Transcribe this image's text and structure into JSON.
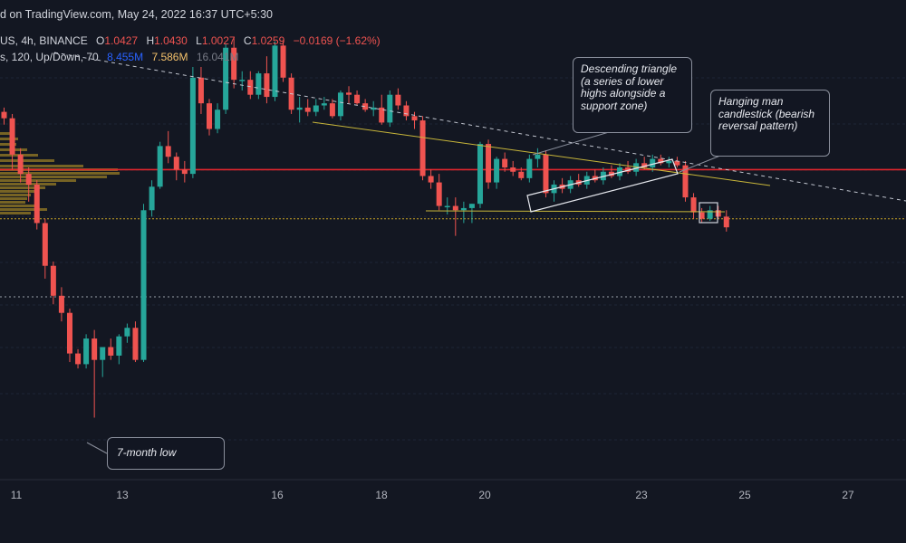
{
  "header": {
    "attribution": "d on TradingView.com, May 24, 2022 16:37 UTC+5:30",
    "symbol": "US, 4h, BINANCE",
    "ohlc": {
      "o_label": "O",
      "o": "1.0427",
      "h_label": "H",
      "h": "1.0430",
      "l_label": "L",
      "l": "1.0027",
      "c_label": "C",
      "c": "1.0259",
      "change": "−0.0169 (−1.62%)"
    },
    "indicator": {
      "label": "s, 120, Up/Down, 70",
      "v1": "8.455M",
      "v2": "7.586M",
      "v3": "16.041M"
    }
  },
  "annotations": {
    "descending_triangle": "Descending triangle (a series of lower highs alongside a support zone)",
    "hanging_man": "Hanging man candlestick (bearish reversal pattern)",
    "seven_month_low": "7-month low"
  },
  "colors": {
    "background": "#131722",
    "bull": "#26a69a",
    "bear": "#ef5350",
    "resistance": "#e0262c",
    "trendline": "#c8b63a",
    "dashed_line": "#c8ccd6",
    "volume_profile": "#c8a326",
    "text": "#d1d4dc",
    "change_negative": "#ef5350",
    "indicator_v1": "#2962ff",
    "indicator_v2": "#f5c26b",
    "indicator_v3": "#787b86"
  },
  "chart_data": {
    "type": "candlestick",
    "interval": "4h",
    "x_ticks": [
      "11",
      "13",
      "16",
      "18",
      "20",
      "23",
      "25",
      "27"
    ],
    "candles": [
      {
        "o": 1.102,
        "h": 1.104,
        "l": 1.096,
        "c": 1.099
      },
      {
        "o": 1.099,
        "h": 1.101,
        "l": 1.075,
        "c": 1.082
      },
      {
        "o": 1.082,
        "h": 1.085,
        "l": 1.069,
        "c": 1.073
      },
      {
        "o": 1.073,
        "h": 1.076,
        "l": 1.06,
        "c": 1.068
      },
      {
        "o": 1.068,
        "h": 1.07,
        "l": 1.047,
        "c": 1.05
      },
      {
        "o": 1.05,
        "h": 1.052,
        "l": 1.024,
        "c": 1.03
      },
      {
        "o": 1.03,
        "h": 1.032,
        "l": 1.012,
        "c": 1.016
      },
      {
        "o": 1.016,
        "h": 1.02,
        "l": 1.004,
        "c": 1.008
      },
      {
        "o": 1.008,
        "h": 1.01,
        "l": 0.985,
        "c": 0.989
      },
      {
        "o": 0.989,
        "h": 0.991,
        "l": 0.982,
        "c": 0.984
      },
      {
        "o": 0.984,
        "h": 0.998,
        "l": 0.982,
        "c": 0.996
      },
      {
        "o": 0.996,
        "h": 1.0,
        "l": 0.959,
        "c": 0.986
      },
      {
        "o": 0.986,
        "h": 0.992,
        "l": 0.978,
        "c": 0.992
      },
      {
        "o": 0.992,
        "h": 0.996,
        "l": 0.986,
        "c": 0.988
      },
      {
        "o": 0.988,
        "h": 0.998,
        "l": 0.984,
        "c": 0.997
      },
      {
        "o": 0.997,
        "h": 1.003,
        "l": 0.994,
        "c": 1.001
      },
      {
        "o": 1.001,
        "h": 1.004,
        "l": 0.985,
        "c": 0.986
      },
      {
        "o": 0.986,
        "h": 1.059,
        "l": 0.985,
        "c": 1.056
      },
      {
        "o": 1.056,
        "h": 1.07,
        "l": 1.053,
        "c": 1.067
      },
      {
        "o": 1.067,
        "h": 1.088,
        "l": 1.066,
        "c": 1.086
      },
      {
        "o": 1.086,
        "h": 1.093,
        "l": 1.078,
        "c": 1.081
      },
      {
        "o": 1.081,
        "h": 1.083,
        "l": 1.07,
        "c": 1.075
      },
      {
        "o": 1.075,
        "h": 1.079,
        "l": 1.069,
        "c": 1.073
      },
      {
        "o": 1.073,
        "h": 1.123,
        "l": 1.071,
        "c": 1.118
      },
      {
        "o": 1.118,
        "h": 1.123,
        "l": 1.101,
        "c": 1.106
      },
      {
        "o": 1.106,
        "h": 1.108,
        "l": 1.091,
        "c": 1.094
      },
      {
        "o": 1.094,
        "h": 1.106,
        "l": 1.092,
        "c": 1.103
      },
      {
        "o": 1.103,
        "h": 1.134,
        "l": 1.101,
        "c": 1.132
      },
      {
        "o": 1.132,
        "h": 1.137,
        "l": 1.113,
        "c": 1.117
      },
      {
        "o": 1.117,
        "h": 1.121,
        "l": 1.112,
        "c": 1.117
      },
      {
        "o": 1.117,
        "h": 1.121,
        "l": 1.108,
        "c": 1.11
      },
      {
        "o": 1.11,
        "h": 1.121,
        "l": 1.108,
        "c": 1.12
      },
      {
        "o": 1.12,
        "h": 1.128,
        "l": 1.106,
        "c": 1.109
      },
      {
        "o": 1.109,
        "h": 1.135,
        "l": 1.107,
        "c": 1.133
      },
      {
        "o": 1.133,
        "h": 1.135,
        "l": 1.116,
        "c": 1.118
      },
      {
        "o": 1.118,
        "h": 1.12,
        "l": 1.101,
        "c": 1.103
      },
      {
        "o": 1.103,
        "h": 1.109,
        "l": 1.097,
        "c": 1.104
      },
      {
        "o": 1.104,
        "h": 1.108,
        "l": 1.1,
        "c": 1.102
      },
      {
        "o": 1.102,
        "h": 1.108,
        "l": 1.1,
        "c": 1.105
      },
      {
        "o": 1.105,
        "h": 1.109,
        "l": 1.103,
        "c": 1.106
      },
      {
        "o": 1.106,
        "h": 1.108,
        "l": 1.099,
        "c": 1.1
      },
      {
        "o": 1.1,
        "h": 1.112,
        "l": 1.098,
        "c": 1.111
      },
      {
        "o": 1.111,
        "h": 1.114,
        "l": 1.106,
        "c": 1.11
      },
      {
        "o": 1.11,
        "h": 1.112,
        "l": 1.105,
        "c": 1.106
      },
      {
        "o": 1.106,
        "h": 1.108,
        "l": 1.102,
        "c": 1.103
      },
      {
        "o": 1.103,
        "h": 1.107,
        "l": 1.1,
        "c": 1.104
      },
      {
        "o": 1.104,
        "h": 1.11,
        "l": 1.096,
        "c": 1.097
      },
      {
        "o": 1.097,
        "h": 1.112,
        "l": 1.095,
        "c": 1.11
      },
      {
        "o": 1.11,
        "h": 1.113,
        "l": 1.103,
        "c": 1.105
      },
      {
        "o": 1.105,
        "h": 1.107,
        "l": 1.098,
        "c": 1.1
      },
      {
        "o": 1.1,
        "h": 1.102,
        "l": 1.094,
        "c": 1.098
      },
      {
        "o": 1.098,
        "h": 1.1,
        "l": 1.07,
        "c": 1.072
      },
      {
        "o": 1.072,
        "h": 1.075,
        "l": 1.066,
        "c": 1.069
      },
      {
        "o": 1.069,
        "h": 1.073,
        "l": 1.056,
        "c": 1.058
      },
      {
        "o": 1.058,
        "h": 1.062,
        "l": 1.054,
        "c": 1.058
      },
      {
        "o": 1.058,
        "h": 1.062,
        "l": 1.044,
        "c": 1.056
      },
      {
        "o": 1.056,
        "h": 1.06,
        "l": 1.05,
        "c": 1.057
      },
      {
        "o": 1.057,
        "h": 1.059,
        "l": 1.05,
        "c": 1.059
      },
      {
        "o": 1.059,
        "h": 1.088,
        "l": 1.057,
        "c": 1.087
      },
      {
        "o": 1.087,
        "h": 1.089,
        "l": 1.066,
        "c": 1.069
      },
      {
        "o": 1.069,
        "h": 1.081,
        "l": 1.066,
        "c": 1.08
      },
      {
        "o": 1.08,
        "h": 1.083,
        "l": 1.074,
        "c": 1.076
      },
      {
        "o": 1.076,
        "h": 1.079,
        "l": 1.072,
        "c": 1.074
      },
      {
        "o": 1.074,
        "h": 1.076,
        "l": 1.07,
        "c": 1.071
      },
      {
        "o": 1.071,
        "h": 1.082,
        "l": 1.069,
        "c": 1.08
      },
      {
        "o": 1.08,
        "h": 1.085,
        "l": 1.076,
        "c": 1.082
      },
      {
        "o": 1.082,
        "h": 1.084,
        "l": 1.062,
        "c": 1.064
      },
      {
        "o": 1.064,
        "h": 1.07,
        "l": 1.06,
        "c": 1.068
      },
      {
        "o": 1.068,
        "h": 1.071,
        "l": 1.064,
        "c": 1.066
      },
      {
        "o": 1.066,
        "h": 1.072,
        "l": 1.064,
        "c": 1.07
      },
      {
        "o": 1.07,
        "h": 1.073,
        "l": 1.067,
        "c": 1.068
      },
      {
        "o": 1.068,
        "h": 1.074,
        "l": 1.066,
        "c": 1.072
      },
      {
        "o": 1.072,
        "h": 1.075,
        "l": 1.069,
        "c": 1.07
      },
      {
        "o": 1.07,
        "h": 1.076,
        "l": 1.068,
        "c": 1.074
      },
      {
        "o": 1.074,
        "h": 1.077,
        "l": 1.071,
        "c": 1.072
      },
      {
        "o": 1.072,
        "h": 1.078,
        "l": 1.07,
        "c": 1.076
      },
      {
        "o": 1.076,
        "h": 1.079,
        "l": 1.073,
        "c": 1.074
      },
      {
        "o": 1.074,
        "h": 1.08,
        "l": 1.072,
        "c": 1.078
      },
      {
        "o": 1.078,
        "h": 1.081,
        "l": 1.075,
        "c": 1.076
      },
      {
        "o": 1.076,
        "h": 1.082,
        "l": 1.074,
        "c": 1.08
      },
      {
        "o": 1.08,
        "h": 1.082,
        "l": 1.077,
        "c": 1.078
      },
      {
        "o": 1.078,
        "h": 1.081,
        "l": 1.076,
        "c": 1.079
      },
      {
        "o": 1.079,
        "h": 1.081,
        "l": 1.076,
        "c": 1.077
      },
      {
        "o": 1.077,
        "h": 1.079,
        "l": 1.06,
        "c": 1.062
      },
      {
        "o": 1.062,
        "h": 1.064,
        "l": 1.052,
        "c": 1.055
      },
      {
        "o": 1.055,
        "h": 1.057,
        "l": 1.05,
        "c": 1.052
      },
      {
        "o": 1.052,
        "h": 1.058,
        "l": 1.051,
        "c": 1.056
      },
      {
        "o": 1.056,
        "h": 1.058,
        "l": 1.052,
        "c": 1.053
      },
      {
        "o": 1.053,
        "h": 1.056,
        "l": 1.046,
        "c": 1.048
      }
    ],
    "levels": {
      "resistance_red": 1.075,
      "support_dotted": 1.052,
      "lower_dotted": 1.025
    },
    "y_range": [
      0.93,
      1.145
    ]
  }
}
